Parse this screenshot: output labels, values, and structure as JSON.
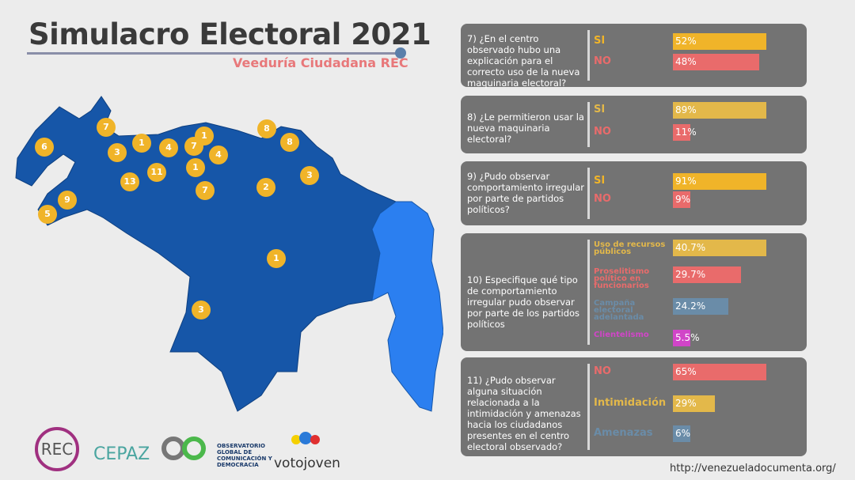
{
  "header": {
    "title": "Simulacro Electoral 2021",
    "subtitle": "Veeduría Ciudadana REC"
  },
  "colors": {
    "si": "#f0b429",
    "no": "#e96b6b",
    "blue": "#1656a8",
    "esequibo": "#2b7ff0",
    "panel": "#737373"
  },
  "questions": [
    {
      "text": "7) ¿En el centro observado hubo una explicación para el correcto uso de la nueva maquinaria electoral?",
      "options": [
        {
          "label": "SI",
          "value": "52%",
          "pct": 52,
          "color": "#f0b429"
        },
        {
          "label": "NO",
          "value": "48%",
          "pct": 48,
          "color": "#e96b6b"
        }
      ]
    },
    {
      "text": "8) ¿Le permitieron usar la nueva maquinaria electoral?",
      "options": [
        {
          "label": "SI",
          "value": "89%",
          "pct": 89,
          "color": "#e3b84a"
        },
        {
          "label": "NO",
          "value": "11%",
          "pct": 11,
          "color": "#e96b6b"
        }
      ]
    },
    {
      "text": "9) ¿Pudo observar comportamiento irregular por parte de partidos políticos?",
      "options": [
        {
          "label": "SI",
          "value": "91%",
          "pct": 91,
          "color": "#f0b429"
        },
        {
          "label": "NO",
          "value": "9%",
          "pct": 9,
          "color": "#e96b6b"
        }
      ]
    },
    {
      "text": "10) Especifique qué tipo de comportamiento irregular pudo observar por parte de los partidos políticos",
      "options": [
        {
          "label": "Uso de recursos públicos",
          "value": "40.7%",
          "pct": 40.7,
          "color": "#e3b84a"
        },
        {
          "label": "Proselitismo político en funcionarios",
          "value": "29.7%",
          "pct": 29.7,
          "color": "#e96b6b"
        },
        {
          "label": "Campaña electoral adelantada",
          "value": "24.2%",
          "pct": 24.2,
          "color": "#6a8ca8"
        },
        {
          "label": "Clientelismo",
          "value": "5.5%",
          "pct": 5.5,
          "color": "#d145c8"
        }
      ]
    },
    {
      "text": "11) ¿Pudo observar alguna situación relacionada a la intimidación y amenazas hacia los ciudadanos presentes en el centro electoral observado?",
      "options": [
        {
          "label": "NO",
          "value": "65%",
          "pct": 65,
          "color": "#e96b6b"
        },
        {
          "label": "Intimidación",
          "value": "29%",
          "pct": 29,
          "color": "#e3b84a"
        },
        {
          "label": "Amenazas",
          "value": "6%",
          "pct": 6,
          "color": "#6a8ca8"
        }
      ]
    }
  ],
  "map_markers": [
    "7",
    "6",
    "3",
    "1",
    "4",
    "7",
    "1",
    "4",
    "8",
    "8",
    "1",
    "11",
    "13",
    "3",
    "2",
    "7",
    "9",
    "5",
    "1",
    "3"
  ],
  "logos": {
    "rec": "REC",
    "cepaz": "CEPAZ",
    "ogc": "OBSERVATORIO GLOBAL DE COMUNICACIÓN Y DEMOCRACIA",
    "votojoven": "votojoven"
  },
  "footer": {
    "url": "http://venezueladocumenta.org/"
  }
}
